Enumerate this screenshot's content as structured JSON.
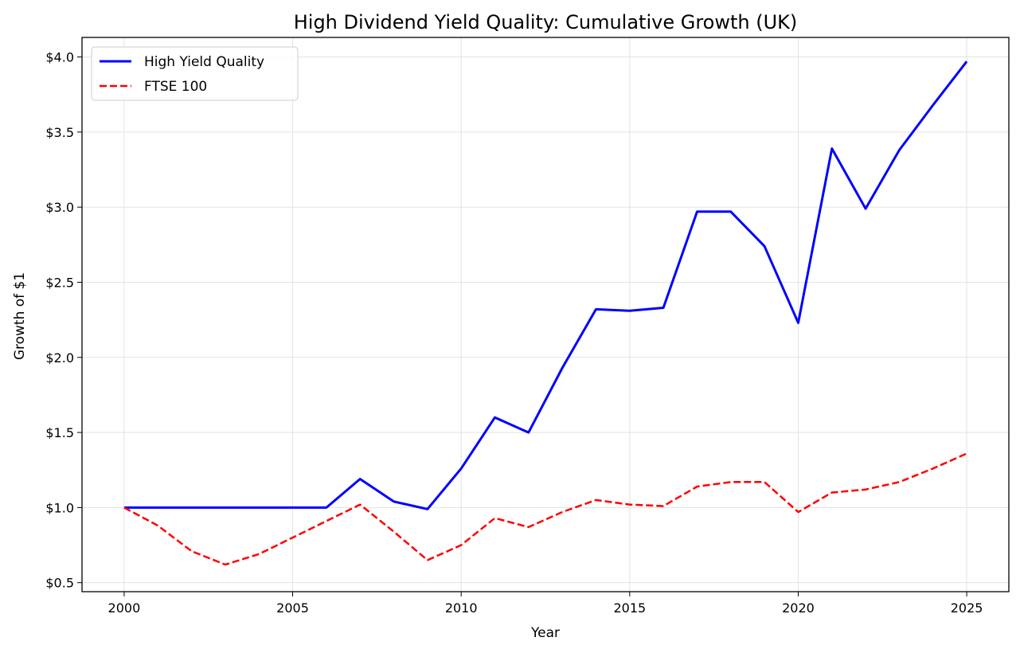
{
  "chart_data": {
    "type": "line",
    "title": "High Dividend Yield Quality: Cumulative Growth (UK)",
    "xlabel": "Year",
    "ylabel": "Growth of $1",
    "xlim": [
      1998.75,
      2026.25
    ],
    "ylim": [
      0.44,
      4.13
    ],
    "xticks": [
      2000,
      2005,
      2010,
      2015,
      2020,
      2025
    ],
    "xtick_labels": [
      "2000",
      "2005",
      "2010",
      "2015",
      "2020",
      "2025"
    ],
    "yticks": [
      0.5,
      1.0,
      1.5,
      2.0,
      2.5,
      3.0,
      3.5,
      4.0
    ],
    "ytick_labels": [
      "$0.5",
      "$1.0",
      "$1.5",
      "$2.0",
      "$2.5",
      "$3.0",
      "$3.5",
      "$4.0"
    ],
    "grid": true,
    "legend_position": "top-left",
    "x": [
      2000,
      2001,
      2002,
      2003,
      2004,
      2005,
      2006,
      2007,
      2008,
      2009,
      2010,
      2011,
      2012,
      2013,
      2014,
      2015,
      2016,
      2017,
      2018,
      2019,
      2020,
      2021,
      2022,
      2023,
      2024,
      2025
    ],
    "series": [
      {
        "name": "High Yield Quality",
        "color": "#0000ff",
        "style": "solid",
        "values": [
          1.0,
          1.0,
          1.0,
          1.0,
          1.0,
          1.0,
          1.0,
          1.19,
          1.04,
          0.99,
          1.26,
          1.6,
          1.5,
          1.93,
          2.32,
          2.31,
          2.33,
          2.97,
          2.97,
          2.74,
          2.23,
          3.39,
          2.99,
          3.38,
          3.68,
          3.97
        ]
      },
      {
        "name": "FTSE 100",
        "color": "#ff0000",
        "style": "dashed",
        "values": [
          1.0,
          0.88,
          0.71,
          0.62,
          0.69,
          0.8,
          0.91,
          1.02,
          0.84,
          0.65,
          0.75,
          0.93,
          0.87,
          0.97,
          1.05,
          1.02,
          1.01,
          1.14,
          1.17,
          1.17,
          0.97,
          1.1,
          1.12,
          1.17,
          1.26,
          1.36
        ]
      }
    ]
  }
}
